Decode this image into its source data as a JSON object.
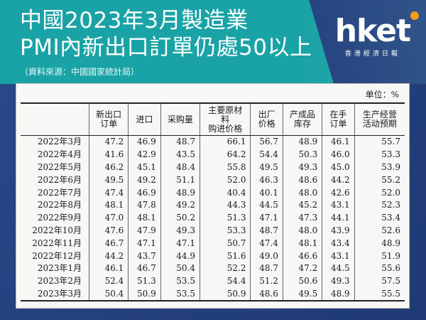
{
  "header": {
    "title_line1": "中國2023年3月製造業",
    "title_line2": "PMI內新出口訂單仍處50以上",
    "source": "（資料來源：中國國家統計局）"
  },
  "logo": {
    "word": "hket",
    "tagline": "香港經濟日報"
  },
  "colors": {
    "band": "#1aa3a6",
    "background": "#2b4580",
    "logo_dot": "#f39a1e"
  },
  "table": {
    "unit": "单位：%",
    "columns": [
      "",
      [
        "新出口",
        "订单"
      ],
      [
        "进口"
      ],
      [
        "采购量"
      ],
      [
        "主要原材",
        "料",
        "购进价格"
      ],
      [
        "出厂",
        "价格"
      ],
      [
        "产成品",
        "库存"
      ],
      [
        "在手",
        "订单"
      ],
      [
        "生产经营",
        "活动预期"
      ]
    ],
    "rows": [
      {
        "month": "2022年3月",
        "values": [
          "47.2",
          "46.9",
          "48.7",
          "66.1",
          "56.7",
          "48.9",
          "46.1",
          "55.7"
        ]
      },
      {
        "month": "2022年4月",
        "values": [
          "41.6",
          "42.9",
          "43.5",
          "64.2",
          "54.4",
          "50.3",
          "46.0",
          "53.3"
        ]
      },
      {
        "month": "2022年5月",
        "values": [
          "46.2",
          "45.1",
          "48.4",
          "55.8",
          "49.5",
          "49.3",
          "45.0",
          "53.9"
        ]
      },
      {
        "month": "2022年6月",
        "values": [
          "49.5",
          "49.2",
          "51.1",
          "52.0",
          "46.3",
          "48.6",
          "44.2",
          "55.2"
        ]
      },
      {
        "month": "2022年7月",
        "values": [
          "47.4",
          "46.9",
          "48.9",
          "40.4",
          "40.1",
          "48.0",
          "42.6",
          "52.0"
        ]
      },
      {
        "month": "2022年8月",
        "values": [
          "48.1",
          "47.8",
          "49.2",
          "44.3",
          "44.5",
          "45.2",
          "43.1",
          "52.3"
        ]
      },
      {
        "month": "2022年9月",
        "values": [
          "47.0",
          "48.1",
          "50.2",
          "51.3",
          "47.1",
          "47.3",
          "44.1",
          "53.4"
        ]
      },
      {
        "month": "2022年10月",
        "values": [
          "47.6",
          "47.9",
          "49.3",
          "53.3",
          "48.7",
          "48.0",
          "43.9",
          "52.6"
        ]
      },
      {
        "month": "2022年11月",
        "values": [
          "46.7",
          "47.1",
          "47.1",
          "50.7",
          "47.4",
          "48.1",
          "43.4",
          "48.9"
        ]
      },
      {
        "month": "2022年12月",
        "values": [
          "44.2",
          "43.7",
          "44.9",
          "51.6",
          "49.0",
          "46.6",
          "43.1",
          "51.9"
        ]
      },
      {
        "month": "2023年1月",
        "values": [
          "46.1",
          "46.7",
          "50.4",
          "52.2",
          "48.7",
          "47.2",
          "44.5",
          "55.6"
        ]
      },
      {
        "month": "2023年2月",
        "values": [
          "52.4",
          "51.3",
          "53.5",
          "54.4",
          "51.2",
          "50.6",
          "49.3",
          "57.5"
        ]
      },
      {
        "month": "2023年3月",
        "values": [
          "50.4",
          "50.9",
          "53.5",
          "50.9",
          "48.6",
          "49.5",
          "48.9",
          "55.5"
        ]
      }
    ]
  }
}
